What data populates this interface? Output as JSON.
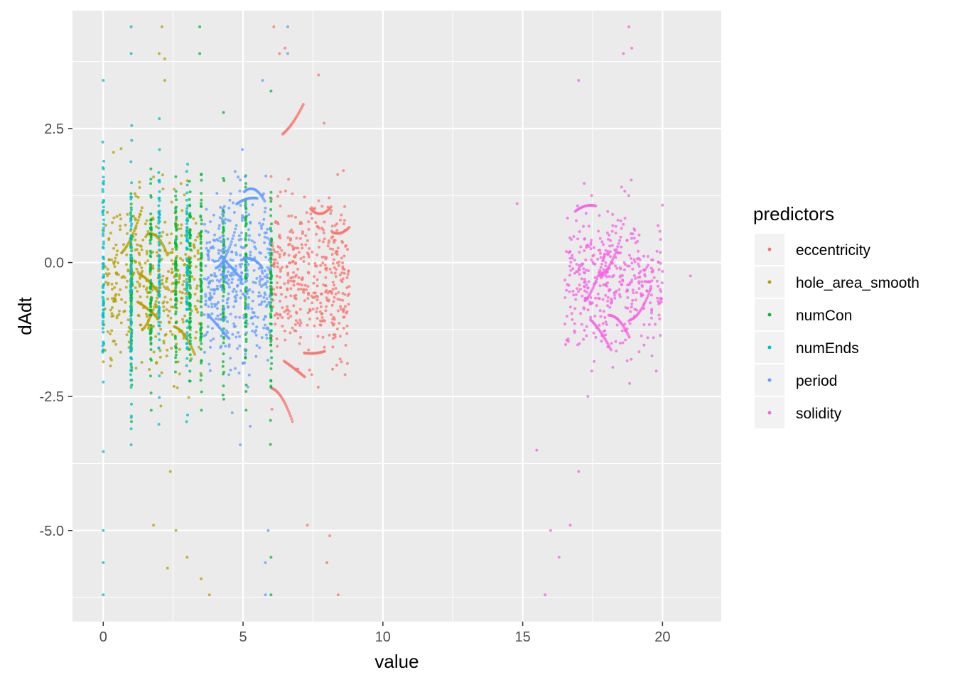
{
  "chart_data": {
    "type": "scatter",
    "title": "",
    "xlabel": "value",
    "ylabel": "dAdt",
    "xlim": [
      -1.1,
      22.1
    ],
    "ylim": [
      -6.7,
      4.7
    ],
    "x_ticks": [
      0,
      5,
      10,
      15,
      20
    ],
    "x_tick_labels": [
      "0",
      "5",
      "10",
      "15",
      "20"
    ],
    "y_ticks": [
      2.5,
      0.0,
      -2.5,
      -5.0
    ],
    "y_tick_labels": [
      "2.5",
      "0.0",
      "-2.5",
      "-5.0"
    ],
    "grid": true,
    "background": "#ebebeb",
    "legend": {
      "title": "predictors",
      "position": "right",
      "entries": [
        "eccentricity",
        "hole_area_smooth",
        "numCon",
        "numEnds",
        "period",
        "solidity"
      ]
    },
    "series": [
      {
        "name": "eccentricity",
        "color": "#F8766D",
        "x_range": [
          6.0,
          8.8
        ],
        "y_center": -0.3,
        "y_spread": 0.7,
        "extremes": [
          {
            "x": 6.1,
            "y": 4.4
          },
          {
            "x": 6.3,
            "y": 3.9
          },
          {
            "x": 6.5,
            "y": 4.0
          },
          {
            "x": 7.7,
            "y": 3.5
          },
          {
            "x": 7.9,
            "y": 2.6
          },
          {
            "x": 8.0,
            "y": -5.6
          },
          {
            "x": 8.4,
            "y": -6.2
          },
          {
            "x": 8.1,
            "y": -5.1
          },
          {
            "x": 7.3,
            "y": -4.9
          }
        ]
      },
      {
        "name": "hole_area_smooth",
        "color": "#B79F00",
        "x_range": [
          0.0,
          3.5
        ],
        "y_center": -0.4,
        "y_spread": 0.8,
        "extremes": [
          {
            "x": 2.1,
            "y": 4.4
          },
          {
            "x": 2.0,
            "y": 3.9
          },
          {
            "x": 2.2,
            "y": 3.8
          },
          {
            "x": 2.2,
            "y": 3.4
          },
          {
            "x": 2.3,
            "y": -5.7
          },
          {
            "x": 3.8,
            "y": -6.2
          },
          {
            "x": 3.5,
            "y": -5.9
          },
          {
            "x": 1.8,
            "y": -4.9
          },
          {
            "x": 2.6,
            "y": -5.0
          },
          {
            "x": 3.0,
            "y": -5.5
          },
          {
            "x": 2.4,
            "y": -3.9
          }
        ]
      },
      {
        "name": "numCon",
        "color": "#00BA38",
        "x_values": [
          1.0,
          1.7,
          2.6,
          3.1,
          3.5,
          4.3,
          5.1,
          6.0
        ],
        "y_center": -0.4,
        "y_spread": 0.9,
        "extremes": [
          {
            "x": 3.45,
            "y": 4.4
          },
          {
            "x": 3.45,
            "y": 3.9
          },
          {
            "x": 4.3,
            "y": 2.8
          },
          {
            "x": 6.0,
            "y": 3.2
          },
          {
            "x": 6.0,
            "y": -6.2
          },
          {
            "x": 6.0,
            "y": -5.5
          }
        ]
      },
      {
        "name": "numEnds",
        "color": "#00BFC4",
        "x_values": [
          0.0,
          1.0,
          2.0,
          3.0
        ],
        "y_center": -0.3,
        "y_spread": 1.1,
        "extremes": [
          {
            "x": 0.0,
            "y": 3.4
          },
          {
            "x": 0.0,
            "y": -6.2
          },
          {
            "x": 0.0,
            "y": -5.6
          },
          {
            "x": 0.0,
            "y": -5.0
          },
          {
            "x": 1.0,
            "y": 4.4
          },
          {
            "x": 1.0,
            "y": 3.9
          },
          {
            "x": 1.0,
            "y": -3.4
          },
          {
            "x": 1.0,
            "y": -3.1
          }
        ]
      },
      {
        "name": "period",
        "color": "#619CFF",
        "x_range": [
          3.6,
          6.0
        ],
        "y_center": -0.4,
        "y_spread": 0.8,
        "extremes": [
          {
            "x": 5.7,
            "y": 3.4
          },
          {
            "x": 5.8,
            "y": -6.2
          },
          {
            "x": 5.8,
            "y": -5.6
          },
          {
            "x": 5.9,
            "y": -5.0
          },
          {
            "x": 6.6,
            "y": 4.4
          },
          {
            "x": 6.6,
            "y": 3.9
          },
          {
            "x": 4.9,
            "y": -3.4
          }
        ]
      },
      {
        "name": "solidity",
        "color": "#F564E3",
        "x_range": [
          16.5,
          20.0
        ],
        "y_center": -0.3,
        "y_spread": 0.65,
        "extremes": [
          {
            "x": 18.8,
            "y": 4.4
          },
          {
            "x": 18.6,
            "y": 3.9
          },
          {
            "x": 18.9,
            "y": 4.0
          },
          {
            "x": 17.0,
            "y": 3.4
          },
          {
            "x": 15.8,
            "y": -6.2
          },
          {
            "x": 16.3,
            "y": -5.5
          },
          {
            "x": 16.0,
            "y": -5.0
          },
          {
            "x": 16.7,
            "y": -4.9
          },
          {
            "x": 17.0,
            "y": -3.9
          },
          {
            "x": 15.5,
            "y": -3.5
          },
          {
            "x": 21.0,
            "y": -0.25
          },
          {
            "x": 14.8,
            "y": 1.1
          }
        ]
      }
    ]
  }
}
